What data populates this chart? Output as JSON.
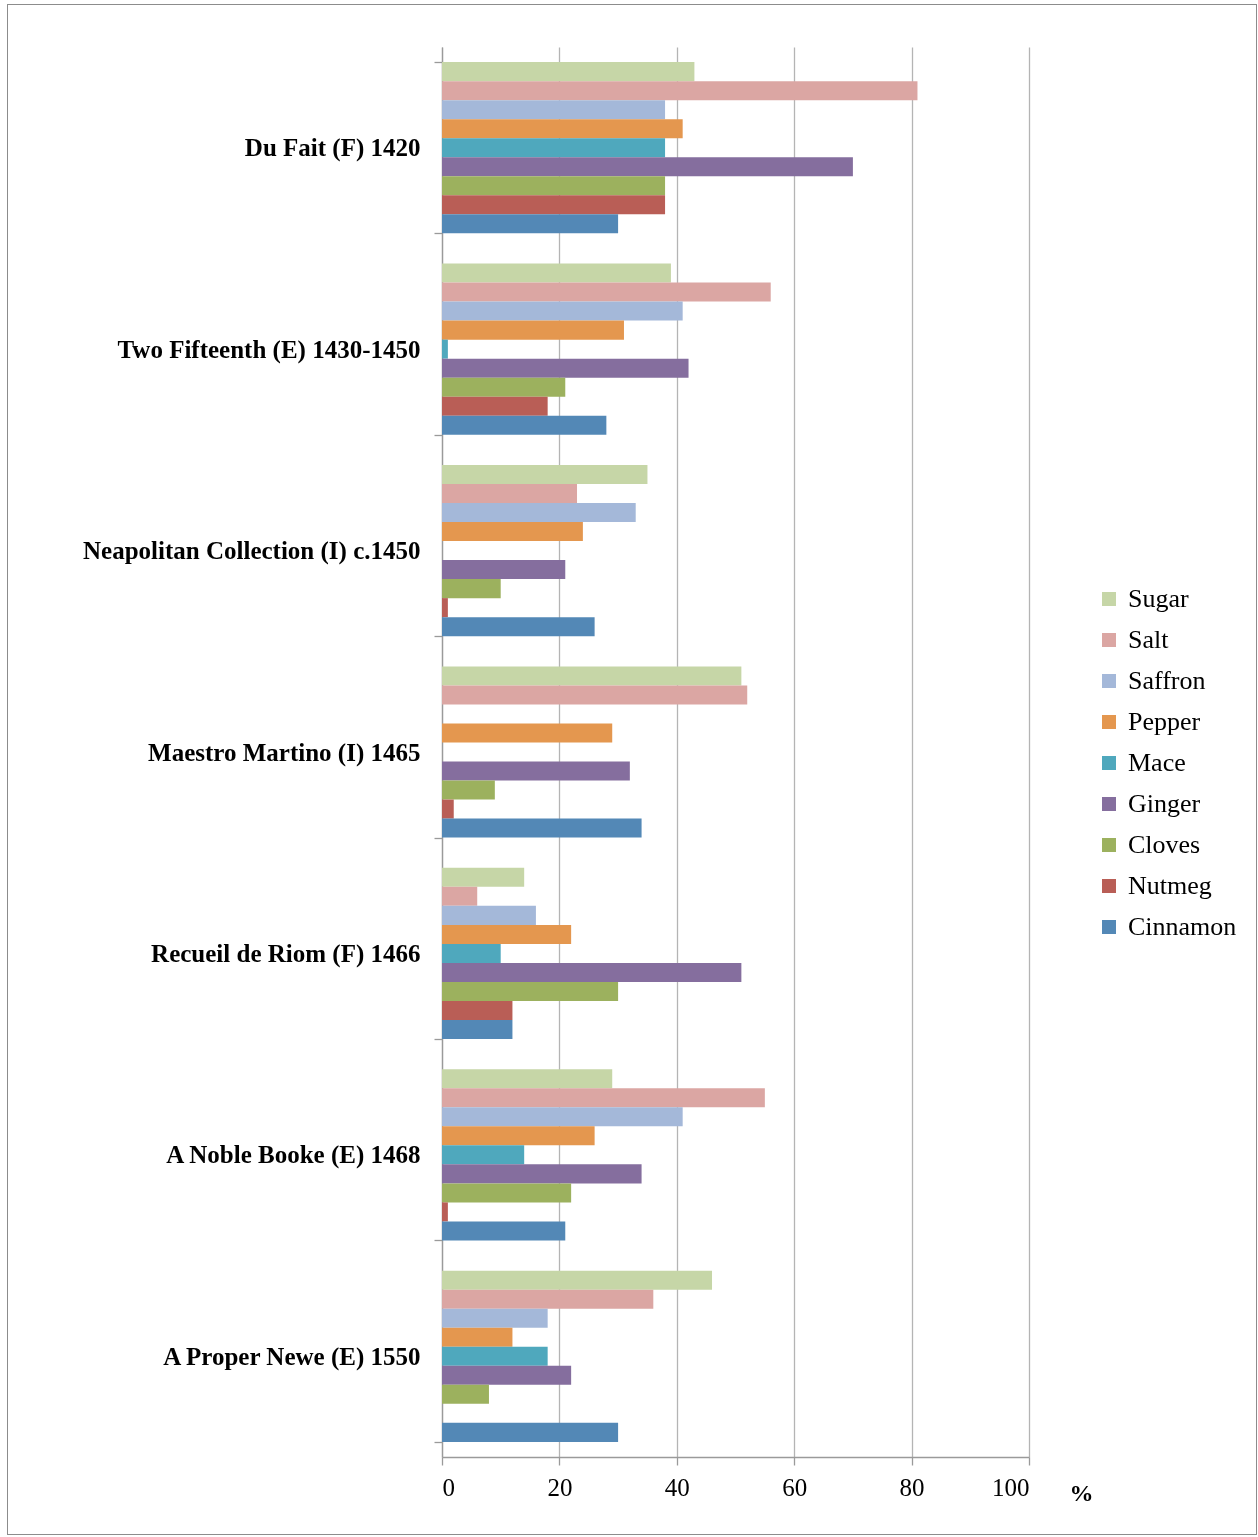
{
  "chart_data": {
    "type": "bar",
    "orientation": "horizontal",
    "xlabel": "%",
    "categories": [
      "Du Fait (F) 1420",
      "Two Fifteenth (E) 1430-1450",
      "Neapolitan Collection (I) c.1450",
      "Maestro Martino (I) 1465",
      "Recueil de Riom (F) 1466",
      "A Noble Booke (E) 1468",
      "A Proper Newe (E) 1550"
    ],
    "series": [
      {
        "name": "Sugar",
        "color": "#c6d6a7",
        "values": [
          43,
          39,
          35,
          51,
          14,
          29,
          46
        ]
      },
      {
        "name": "Salt",
        "color": "#dba6a3",
        "values": [
          81,
          56,
          23,
          52,
          6,
          55,
          36
        ]
      },
      {
        "name": "Saffron",
        "color": "#a4b8d9",
        "values": [
          38,
          41,
          33,
          null,
          16,
          41,
          18
        ]
      },
      {
        "name": "Pepper",
        "color": "#e4974f",
        "values": [
          41,
          31,
          24,
          29,
          22,
          26,
          12
        ]
      },
      {
        "name": "Mace",
        "color": "#4fa8bd",
        "values": [
          38,
          1,
          null,
          null,
          10,
          14,
          18
        ]
      },
      {
        "name": "Ginger",
        "color": "#856e9e",
        "values": [
          70,
          42,
          21,
          32,
          51,
          34,
          22
        ]
      },
      {
        "name": "Cloves",
        "color": "#9cb15e",
        "values": [
          38,
          21,
          10,
          9,
          30,
          22,
          8
        ]
      },
      {
        "name": "Nutmeg",
        "color": "#b95e56",
        "values": [
          38,
          18,
          1,
          2,
          12,
          1,
          null
        ]
      },
      {
        "name": "Cinnamon",
        "color": "#5388b6",
        "values": [
          30,
          28,
          26,
          34,
          12,
          21,
          30
        ]
      }
    ],
    "xlim": [
      0,
      100
    ],
    "xticks": [
      0,
      20,
      40,
      60,
      80,
      100
    ],
    "grid": "x",
    "legend": "right"
  }
}
